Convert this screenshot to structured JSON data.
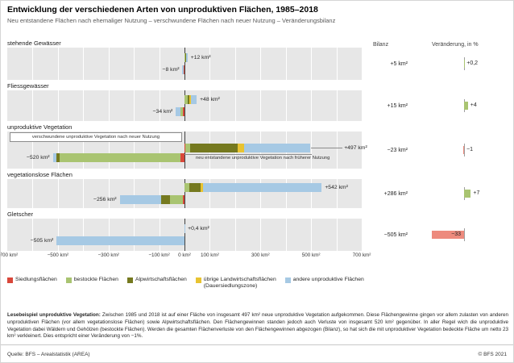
{
  "header": {
    "title": "Entwicklung der verschiedenen Arten von unproduktiven Flächen, 1985–2018",
    "subtitle": "Neu entstandene Flächen nach ehemaliger Nutzung – verschwundene Flächen nach neuer Nutzung – Veränderungsbilanz"
  },
  "columns": {
    "bilanz": "Bilanz",
    "change": "Veränderung, in %"
  },
  "chart_data": {
    "type": "bar",
    "orientation": "horizontal-diverging",
    "unit": "km²",
    "xlim": [
      -700,
      700
    ],
    "gridline_step": 100,
    "x_ticks": [
      -700,
      -500,
      -300,
      -100,
      0,
      100,
      300,
      500,
      700
    ],
    "x_tick_labels": [
      "−700 km²",
      "−500 km²",
      "−300 km²",
      "−100 km²",
      "0 km²",
      "100 km²",
      "300 km²",
      "500 km²",
      "700 km²"
    ],
    "band_color": "#e7e7e7",
    "zero_line_color": "#404040",
    "change_pos_color": "#a9c471",
    "change_neg_color": "#ed8a7d",
    "legend": [
      {
        "key": "sie",
        "label": "Siedlungsflächen",
        "color": "#d9473a"
      },
      {
        "key": "bes",
        "label": "bestockte Flächen",
        "color": "#a9c471"
      },
      {
        "key": "alp",
        "label": "Alpwirtschaftsflächen",
        "color": "#75791f"
      },
      {
        "key": "ueb",
        "label": "übrige Landwirtschaftsflächen\n(Dauersiedlungszone)",
        "color": "#e8c331"
      },
      {
        "key": "and",
        "label": "andere unproduktive Flächen",
        "color": "#a6c9e4"
      }
    ],
    "rows": [
      {
        "category": "stehende Gewässer",
        "gain_total": 12,
        "gain_label": "+12 km²",
        "gain_segments": [
          [
            "bes",
            4
          ],
          [
            "alp",
            2
          ],
          [
            "and",
            6
          ]
        ],
        "loss_total": 8,
        "loss_label": "−8 km²",
        "loss_segments": [
          [
            "sie",
            2
          ],
          [
            "bes",
            2
          ],
          [
            "and",
            4
          ]
        ],
        "bilanz": "+5 km²",
        "change": 0.2,
        "change_label": "+0,2"
      },
      {
        "category": "Fliessgewässer",
        "gain_total": 48,
        "gain_label": "+48 km²",
        "gain_segments": [
          [
            "bes",
            12
          ],
          [
            "alp",
            8
          ],
          [
            "ueb",
            4
          ],
          [
            "and",
            24
          ]
        ],
        "loss_total": 34,
        "loss_label": "−34 km²",
        "loss_segments": [
          [
            "sie",
            5
          ],
          [
            "bes",
            12
          ],
          [
            "and",
            17
          ]
        ],
        "bilanz": "+15 km²",
        "change": 4,
        "change_label": "+4"
      },
      {
        "category": "unproduktive Vegetation",
        "gain_total": 497,
        "gain_label": "+497 km²",
        "gain_segments": [
          [
            "sie",
            3
          ],
          [
            "bes",
            20
          ],
          [
            "alp",
            186
          ],
          [
            "ueb",
            28
          ],
          [
            "and",
            260
          ]
        ],
        "loss_total": 520,
        "loss_label": "−520 km²",
        "loss_segments": [
          [
            "sie",
            15
          ],
          [
            "bes",
            478
          ],
          [
            "alp",
            12
          ],
          [
            "and",
            15
          ]
        ],
        "bilanz": "−23 km²",
        "change": -1,
        "change_label": "−1",
        "note_loss": "verschwundene unproduktive Vegetation nach neuer Nutzung",
        "note_gain": "neu entstandene unproduktive Vegetation nach früherer Nutzung"
      },
      {
        "category": "vegetationslose Flächen",
        "gain_total": 542,
        "gain_label": "+542 km²",
        "gain_segments": [
          [
            "bes",
            20
          ],
          [
            "alp",
            45
          ],
          [
            "ueb",
            8
          ],
          [
            "and",
            469
          ]
        ],
        "loss_total": 256,
        "loss_label": "−256 km²",
        "loss_segments": [
          [
            "sie",
            6
          ],
          [
            "bes",
            50
          ],
          [
            "alp",
            35
          ],
          [
            "and",
            165
          ]
        ],
        "bilanz": "+286 km²",
        "change": 7,
        "change_label": "+7"
      },
      {
        "category": "Gletscher",
        "gain_total": 0.4,
        "gain_label": "+0,4 km²",
        "gain_segments": [
          [
            "and",
            0.4
          ]
        ],
        "loss_total": 505,
        "loss_label": "−505 km²",
        "loss_segments": [
          [
            "and",
            505
          ]
        ],
        "bilanz": "−505 km²",
        "change": -33,
        "change_label": "−33"
      }
    ]
  },
  "lesebeispiel": {
    "lead": "Lesebeispiel unproduktive Vegetation:",
    "text": " Zwischen 1985 und 2018 ist auf einer Fläche von insgesamt 497 km² neue unproduktive Vegetation aufgekommen. Diese Flächengewinne gingen vor allem zulasten von anderen unproduktiven Flächen (vor allem vegetationslose Flächen) sowie Alpwirtschaftsflächen. Den Flächengewinnen standen jedoch auch Verluste von insgesamt 520 km² gegenüber. In aller Regel wich die unproduktive Vegetation dabei Wäldern und Gehölzen (bestockte Flächen). Werden die gesamten Flächenverluste von den Flächengewinnen abgezogen (Bilanz), so hat sich die mit unproduktiver Vegetation bedeckte Fläche um netto 23 km² verkleinert. Dies entspricht einer Veränderung von −1%."
  },
  "footer": {
    "source": "Quelle: BFS – Arealstatistik (AREA)",
    "copyright": "© BFS 2021"
  }
}
